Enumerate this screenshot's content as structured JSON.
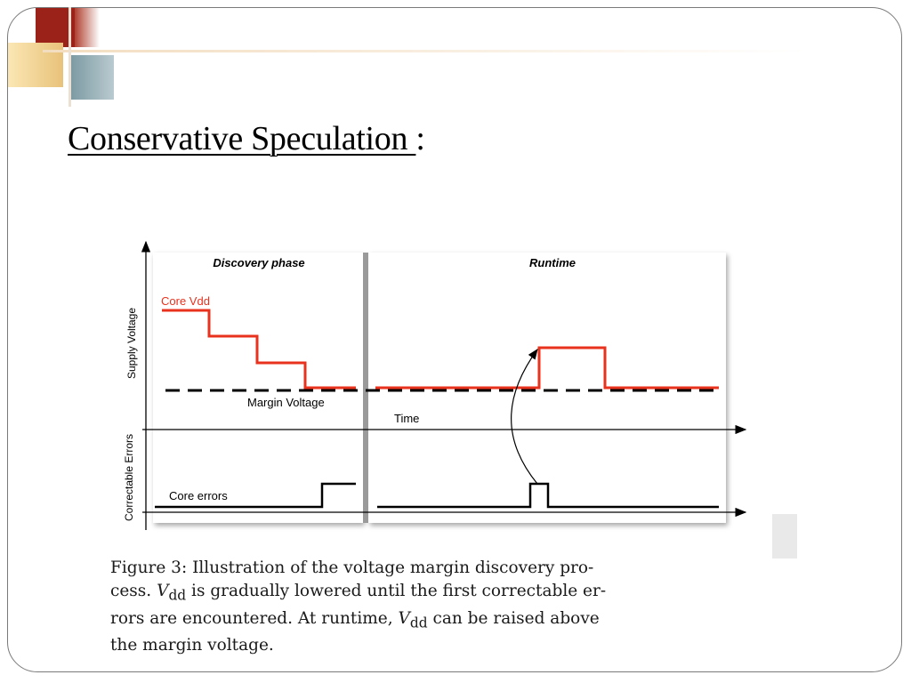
{
  "slide": {
    "title_main": "Conservative Speculation ",
    "title_suffix": ":"
  },
  "figure": {
    "panel_left_title": "Discovery phase",
    "panel_right_title": "Runtime",
    "y_axis_top_label": "Supply Voltage",
    "y_axis_bottom_label": "Correctable Errors",
    "core_vdd_label": "Core Vdd",
    "margin_voltage_label": "Margin Voltage",
    "time_label": "Time",
    "core_errors_label": "Core errors",
    "caption": {
      "line1": "Figure 3: Illustration of the voltage margin discovery pro-",
      "line2_a": "cess. ",
      "line2_v": "V",
      "line2_sub": "dd",
      "line2_b": " is gradually lowered until the first correctable er-",
      "line3_a": "rors are encountered. At runtime, ",
      "line3_v": "V",
      "line3_sub": "dd",
      "line3_b": " can be raised above",
      "line4": "the margin voltage."
    },
    "colors": {
      "core_vdd": "#e8321e",
      "lines": "#000000"
    }
  }
}
